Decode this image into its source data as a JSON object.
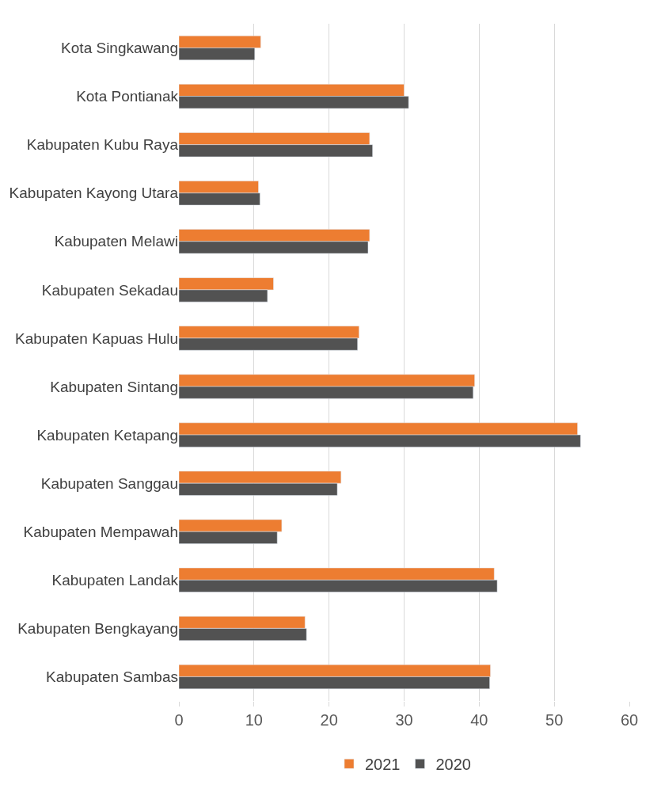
{
  "chart_data": {
    "type": "bar",
    "orientation": "horizontal",
    "categories": [
      "Kota Singkawang",
      "Kota Pontianak",
      "Kabupaten Kubu Raya",
      "Kabupaten Kayong Utara",
      "Kabupaten Melawi",
      "Kabupaten Sekadau",
      "Kabupaten Kapuas Hulu",
      "Kabupaten Sintang",
      "Kabupaten Ketapang",
      "Kabupaten Sanggau",
      "Kabupaten Mempawah",
      "Kabupaten Landak",
      "Kabupaten Bengkayang",
      "Kabupaten Sambas"
    ],
    "series": [
      {
        "name": "2021",
        "color": "#ed7d31",
        "values": [
          10.9,
          30.0,
          25.4,
          10.6,
          25.4,
          12.6,
          24.0,
          39.4,
          53.1,
          21.6,
          13.7,
          42.0,
          16.8,
          41.5
        ]
      },
      {
        "name": "2020",
        "color": "#525252",
        "values": [
          10.1,
          30.6,
          25.8,
          10.8,
          25.2,
          11.8,
          23.8,
          39.2,
          53.5,
          21.1,
          13.1,
          42.4,
          17.0,
          41.4
        ]
      }
    ],
    "xlim": [
      0,
      60
    ],
    "xticks": [
      0,
      10,
      20,
      30,
      40,
      50,
      60
    ],
    "grid": "x",
    "legend": "bottom"
  }
}
